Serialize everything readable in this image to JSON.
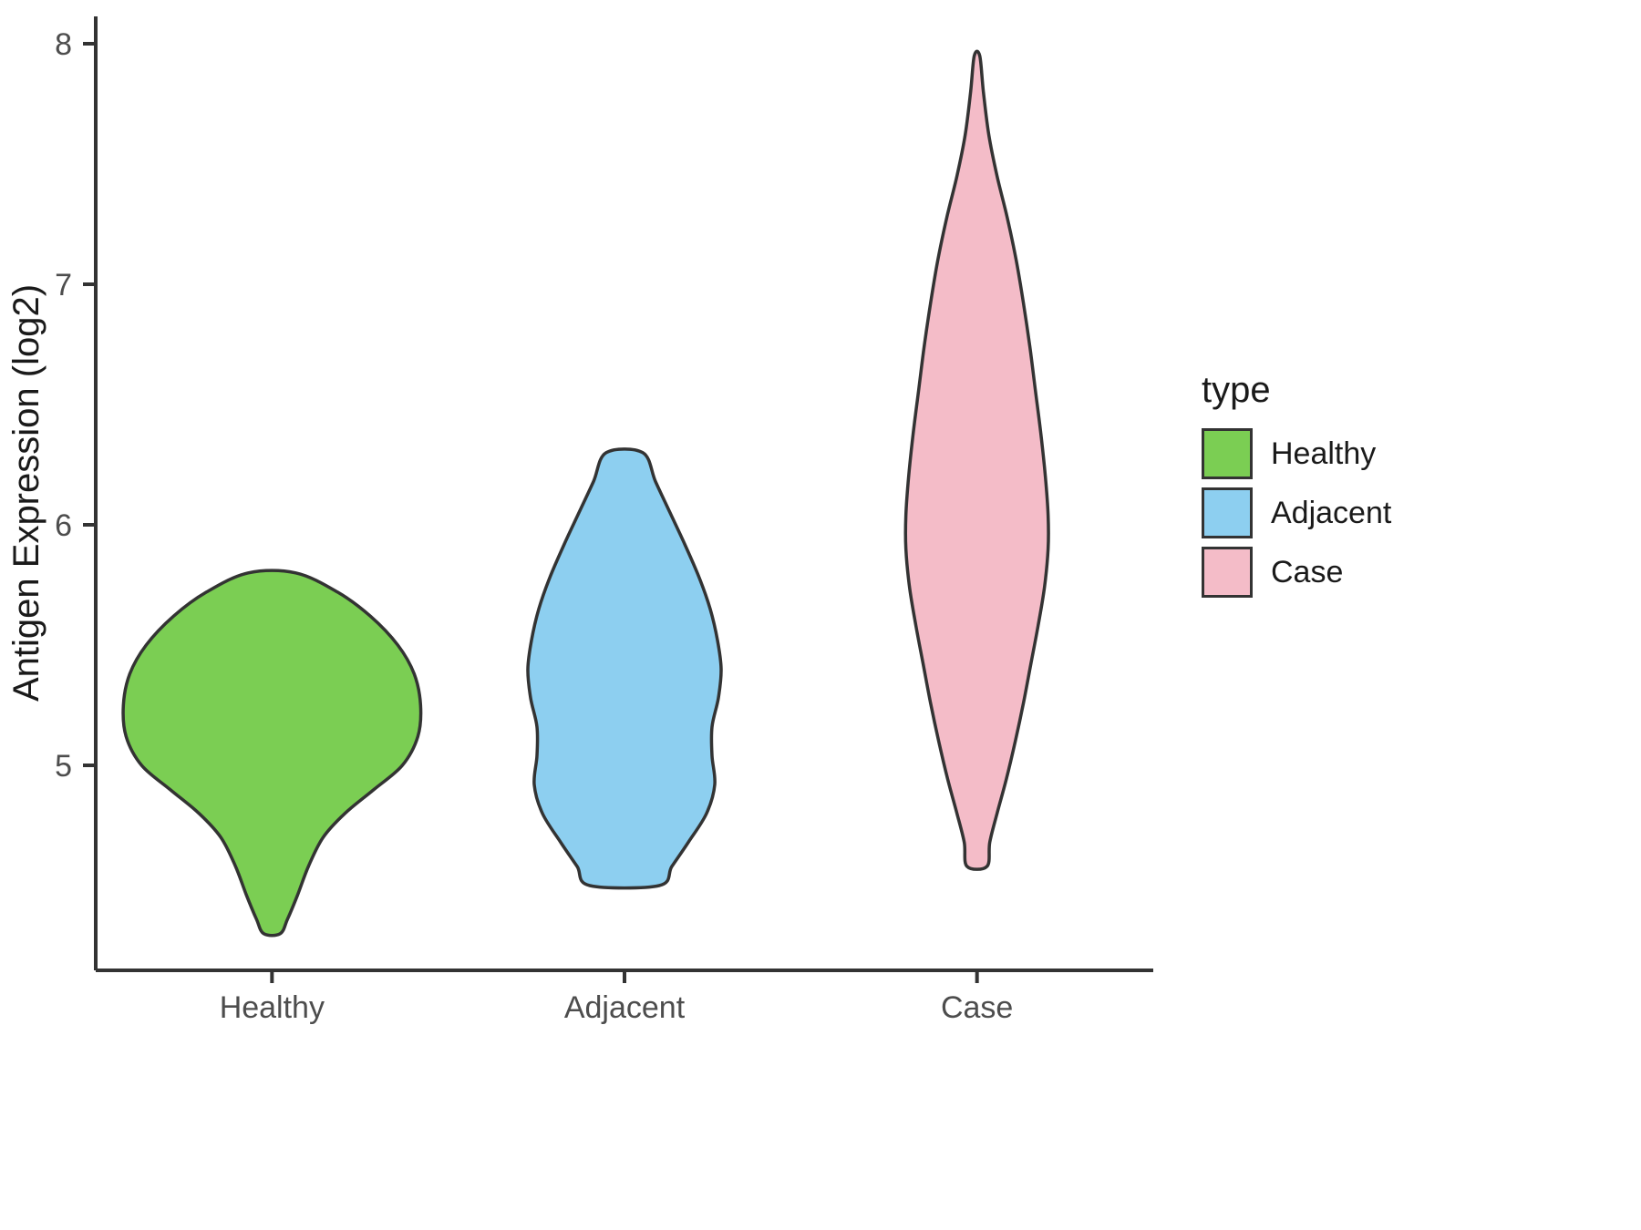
{
  "chart_data": {
    "type": "violin",
    "title": "",
    "xlabel": "",
    "ylabel": "Antigen Expression (log2)",
    "x_categories": [
      "Healthy",
      "Adjacent",
      "Case"
    ],
    "y_ticks": [
      5,
      6,
      7,
      8
    ],
    "ylim": [
      4.15,
      8.1
    ],
    "grid": false,
    "legend": {
      "title": "type",
      "position": "right",
      "entries": [
        {
          "label": "Healthy",
          "color": "#7BCE53"
        },
        {
          "label": "Adjacent",
          "color": "#8DCFF0"
        },
        {
          "label": "Case",
          "color": "#F4BCC8"
        }
      ]
    },
    "style": {
      "violin_stroke": "#333333",
      "violin_stroke_width": 3.5,
      "axis_color": "#333333",
      "axis_width": 4,
      "tick_label_color": "#4d4d4d",
      "axis_title_color": "#1a1a1a",
      "background": "#ffffff"
    },
    "profile_units": "[expression_value_log2, half_width_px]",
    "series": [
      {
        "name": "Healthy",
        "color": "#7BCE53",
        "min": 4.3,
        "max": 5.8,
        "peak": 5.25,
        "profile": [
          [
            5.8,
            26
          ],
          [
            5.72,
            72
          ],
          [
            5.62,
            108
          ],
          [
            5.5,
            138
          ],
          [
            5.38,
            156
          ],
          [
            5.25,
            163
          ],
          [
            5.12,
            160
          ],
          [
            5.0,
            143
          ],
          [
            4.9,
            112
          ],
          [
            4.8,
            80
          ],
          [
            4.7,
            56
          ],
          [
            4.58,
            40
          ],
          [
            4.46,
            28
          ],
          [
            4.36,
            17
          ],
          [
            4.3,
            9
          ]
        ]
      },
      {
        "name": "Adjacent",
        "color": "#8DCFF0",
        "min": 4.5,
        "max": 6.3,
        "peak": 5.4,
        "profile": [
          [
            6.3,
            20
          ],
          [
            6.18,
            34
          ],
          [
            6.05,
            50
          ],
          [
            5.92,
            66
          ],
          [
            5.78,
            82
          ],
          [
            5.65,
            94
          ],
          [
            5.52,
            102
          ],
          [
            5.4,
            106
          ],
          [
            5.28,
            103
          ],
          [
            5.16,
            96
          ],
          [
            5.04,
            96
          ],
          [
            4.92,
            99
          ],
          [
            4.8,
            90
          ],
          [
            4.68,
            70
          ],
          [
            4.58,
            52
          ],
          [
            4.5,
            38
          ]
        ]
      },
      {
        "name": "Case",
        "color": "#F4BCC8",
        "min": 4.58,
        "max": 7.95,
        "peak": 5.95,
        "profile": [
          [
            7.95,
            3
          ],
          [
            7.8,
            7
          ],
          [
            7.62,
            13
          ],
          [
            7.45,
            22
          ],
          [
            7.28,
            33
          ],
          [
            7.1,
            43
          ],
          [
            6.92,
            51
          ],
          [
            6.74,
            58
          ],
          [
            6.56,
            64
          ],
          [
            6.38,
            70
          ],
          [
            6.2,
            75
          ],
          [
            6.04,
            78
          ],
          [
            5.9,
            78
          ],
          [
            5.74,
            74
          ],
          [
            5.58,
            67
          ],
          [
            5.42,
            59
          ],
          [
            5.26,
            51
          ],
          [
            5.1,
            42
          ],
          [
            4.94,
            32
          ],
          [
            4.8,
            22
          ],
          [
            4.68,
            14
          ],
          [
            4.58,
            11
          ]
        ]
      }
    ]
  }
}
